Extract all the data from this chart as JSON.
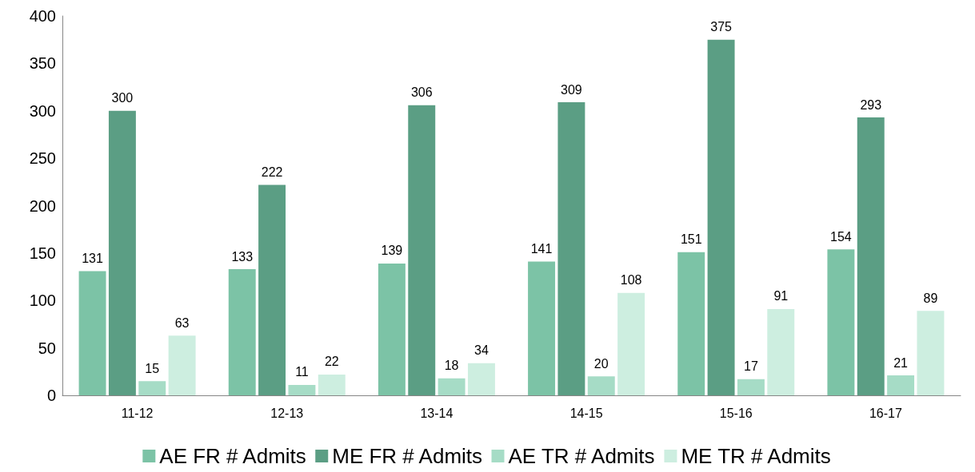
{
  "chart_data": {
    "type": "bar",
    "categories": [
      "11-12",
      "12-13",
      "13-14",
      "14-15",
      "15-16",
      "16-17"
    ],
    "series": [
      {
        "name": "AE FR # Admits",
        "color": "#7cc3a6",
        "values": [
          131,
          133,
          139,
          141,
          151,
          154
        ]
      },
      {
        "name": "ME FR # Admits",
        "color": "#5b9e84",
        "values": [
          300,
          222,
          306,
          309,
          375,
          293
        ]
      },
      {
        "name": "AE TR # Admits",
        "color": "#a6dcc6",
        "values": [
          15,
          11,
          18,
          20,
          17,
          21
        ]
      },
      {
        "name": "ME TR # Admits",
        "color": "#cdeee0",
        "values": [
          63,
          22,
          34,
          108,
          91,
          89
        ]
      }
    ],
    "ylim": [
      0,
      400
    ],
    "yticks": [
      0,
      50,
      100,
      150,
      200,
      250,
      300,
      350,
      400
    ],
    "grid": false,
    "legend": "bottom",
    "data_labels": true
  }
}
